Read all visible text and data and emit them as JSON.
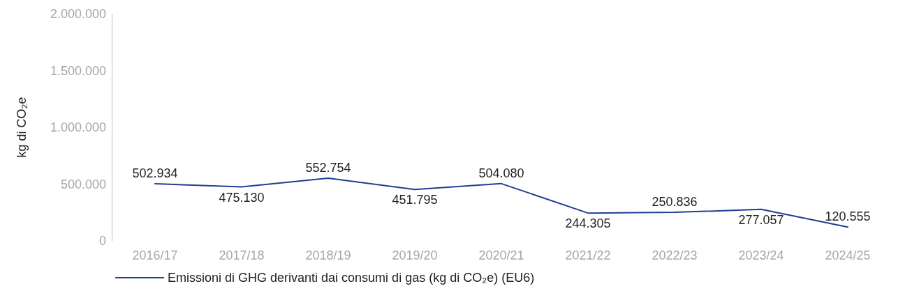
{
  "chart_data": {
    "type": "line",
    "ylabel": "kg di CO₂e",
    "categories": [
      "2016/17",
      "2017/18",
      "2018/19",
      "2019/20",
      "2020/21",
      "2021/22",
      "2022/23",
      "2023/24",
      "2024/25"
    ],
    "series": [
      {
        "name": "Emissioni di GHG derivanti dai consumi di gas (kg di CO₂e) (EU6)",
        "color": "#1f3f94",
        "values": [
          502934,
          475130,
          552754,
          451795,
          504080,
          244305,
          250836,
          277057,
          120555
        ],
        "value_labels": [
          "502.934",
          "475.130",
          "552.754",
          "451.795",
          "504.080",
          "244.305",
          "250.836",
          "277.057",
          "120.555"
        ]
      }
    ],
    "ylim": [
      0,
      2000000
    ],
    "yticks": [
      {
        "value": 0,
        "label": "0"
      },
      {
        "value": 500000,
        "label": "500.000"
      },
      {
        "value": 1000000,
        "label": "1.000.000"
      },
      {
        "value": 1500000,
        "label": "1.500.000"
      },
      {
        "value": 2000000,
        "label": "2.000.000"
      }
    ],
    "grid": false,
    "legend": "bottom",
    "marker": "none",
    "line_style": "solid"
  }
}
